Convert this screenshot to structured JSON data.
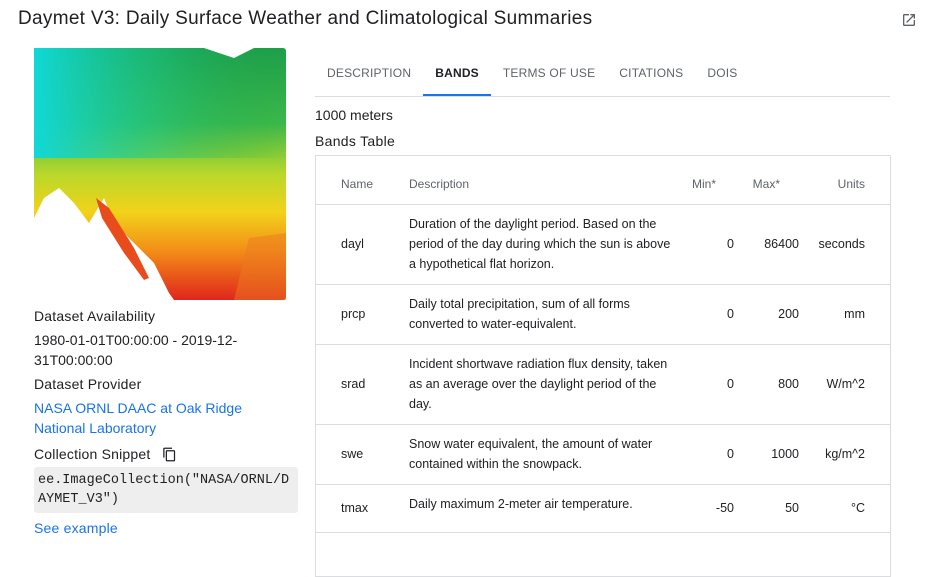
{
  "header": {
    "title": "Daymet V3: Daily Surface Weather and Climatological Summaries"
  },
  "sidebar": {
    "availability_label": "Dataset Availability",
    "availability_value": "1980-01-01T00:00:00 - 2019-12-31T00:00:00",
    "provider_label": "Dataset Provider",
    "provider_value": "NASA ORNL DAAC at Oak Ridge National Laboratory",
    "snippet_label": "Collection Snippet",
    "snippet_code": "ee.ImageCollection(\"NASA/ORNL/DAYMET_V3\")",
    "see_example": "See example"
  },
  "tabs": {
    "items": [
      "DESCRIPTION",
      "BANDS",
      "TERMS OF USE",
      "CITATIONS",
      "DOIS"
    ],
    "active": 1
  },
  "content": {
    "resolution": "1000 meters",
    "table_title": "Bands Table"
  },
  "table": {
    "columns": [
      "Name",
      "Description",
      "Min*",
      "Max*",
      "Units"
    ],
    "rows": [
      [
        "dayl",
        "Duration of the daylight period. Based on the period of the day during which the sun is above a hypothetical flat horizon.",
        "0",
        "86400",
        "seconds"
      ],
      [
        "prcp",
        "Daily total precipitation, sum of all forms converted to water-equivalent.",
        "0",
        "200",
        "mm"
      ],
      [
        "srad",
        "Incident shortwave radiation flux density, taken as an average over the daylight period of the day.",
        "0",
        "800",
        "W/m^2"
      ],
      [
        "swe",
        "Snow water equivalent, the amount of water contained within the snowpack.",
        "0",
        "1000",
        "kg/m^2"
      ],
      [
        "tmax",
        "Daily maximum 2-meter air temperature.",
        "-50",
        "50",
        "°C"
      ]
    ]
  }
}
